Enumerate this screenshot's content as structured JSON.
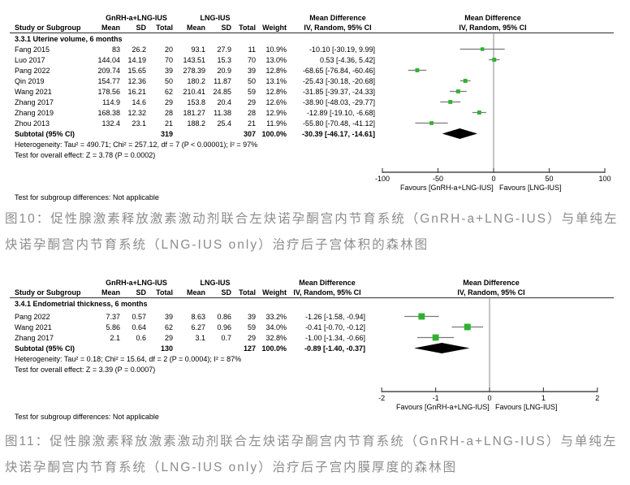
{
  "page": {
    "background": "#ffffff"
  },
  "colors": {
    "marker_green": "#2eb22e",
    "ci_line_gray": "#7a7a7a",
    "axis_gray": "#4a4a4a",
    "diamond_black": "#000000",
    "caption_gray": "#8c8c8c"
  },
  "captions": [
    {
      "lines": [
        "图10：促性腺激素释放激素激动剂联合左炔诺孕酮宫内节育系统（GnRH-a+LNG-IUS）与单纯左",
        "炔诺孕酮宫内节育系统（LNG-IUS only）治疗后子宫体积的森林图"
      ]
    },
    {
      "lines": [
        "图11：促性腺激素释放激素激动剂联合左炔诺孕酮宫内节育系统（GnRH-a+LNG-IUS）与单纯左",
        "炔诺孕酮宫内节育系统（LNG-IUS only）治疗后子宫内膜厚度的森林图"
      ]
    }
  ],
  "chart_data": [
    {
      "type": "scatter",
      "chart_kind": "forest-plot",
      "title": "Mean Difference",
      "effect_model": "IV, Random, 95% CI",
      "group1_label": "GnRH-a+LNG-IUS",
      "group2_label": "LNG-IUS",
      "column_headers": {
        "study": "Study or Subgroup",
        "mean": "Mean",
        "sd": "SD",
        "total": "Total",
        "weight": "Weight"
      },
      "section_label": "3.3.1 Uterine volume, 6 months",
      "rows": [
        {
          "study": "Fang 2015",
          "mean1": "83",
          "sd1": "26.2",
          "total1": "20",
          "mean2": "93.1",
          "sd2": "27.9",
          "total2": "11",
          "weight": "10.9%",
          "effect_text": "-10.10 [-30.19, 9.99]",
          "est": -10.1,
          "lo": -30.19,
          "hi": 9.99
        },
        {
          "study": "Luo 2017",
          "mean1": "144.04",
          "sd1": "14.19",
          "total1": "70",
          "mean2": "143.51",
          "sd2": "15.3",
          "total2": "70",
          "weight": "13.0%",
          "effect_text": "0.53 [-4.36, 5.42]",
          "est": 0.53,
          "lo": -4.36,
          "hi": 5.42
        },
        {
          "study": "Pang 2022",
          "mean1": "209.74",
          "sd1": "15.65",
          "total1": "39",
          "mean2": "278.39",
          "sd2": "20.9",
          "total2": "39",
          "weight": "12.8%",
          "effect_text": "-68.65 [-76.84, -60.46]",
          "est": -68.65,
          "lo": -76.84,
          "hi": -60.46
        },
        {
          "study": "Qin 2019",
          "mean1": "154.77",
          "sd1": "12.36",
          "total1": "50",
          "mean2": "180.2",
          "sd2": "11.87",
          "total2": "50",
          "weight": "13.1%",
          "effect_text": "-25.43 [-30.18, -20.68]",
          "est": -25.43,
          "lo": -30.18,
          "hi": -20.68
        },
        {
          "study": "Wang 2021",
          "mean1": "178.56",
          "sd1": "16.21",
          "total1": "62",
          "mean2": "210.41",
          "sd2": "24.85",
          "total2": "59",
          "weight": "12.8%",
          "effect_text": "-31.85 [-39.37, -24.33]",
          "est": -31.85,
          "lo": -39.37,
          "hi": -24.33
        },
        {
          "study": "Zhang 2017",
          "mean1": "114.9",
          "sd1": "14.6",
          "total1": "29",
          "mean2": "153.8",
          "sd2": "20.4",
          "total2": "29",
          "weight": "12.6%",
          "effect_text": "-38.90 [-48.03, -29.77]",
          "est": -38.9,
          "lo": -48.03,
          "hi": -29.77
        },
        {
          "study": "Zhang 2019",
          "mean1": "168.38",
          "sd1": "12.32",
          "total1": "28",
          "mean2": "181.27",
          "sd2": "11.38",
          "total2": "28",
          "weight": "12.9%",
          "effect_text": "-12.89 [-19.10, -6.68]",
          "est": -12.89,
          "lo": -19.1,
          "hi": -6.68
        },
        {
          "study": "Zhou 2013",
          "mean1": "132.4",
          "sd1": "23.1",
          "total1": "21",
          "mean2": "188.2",
          "sd2": "25.4",
          "total2": "21",
          "weight": "11.9%",
          "effect_text": "-55.80 [-70.48, -41.12]",
          "est": -55.8,
          "lo": -70.48,
          "hi": -41.12
        }
      ],
      "subtotal": {
        "label": "Subtotal (95% CI)",
        "total1": "319",
        "total2": "307",
        "weight": "100.0%",
        "effect_text": "-30.39 [-46.17, -14.61]",
        "est": -30.39,
        "lo": -46.17,
        "hi": -14.61
      },
      "heterogeneity": "Heterogeneity: Tau² = 490.71; Chi² = 257.12, df = 7 (P < 0.00001); I² = 97%",
      "overall_effect": "Test for overall effect: Z = 3.78 (P = 0.0002)",
      "subgroup_diff": "Test for subgroup differences: Not applicable",
      "axis": {
        "min": -100,
        "max": 100,
        "tick_values": [
          -100,
          -50,
          0,
          50,
          100
        ],
        "ticks": [
          "-100",
          "-50",
          "0",
          "50",
          "100"
        ]
      },
      "xlim": [
        -100,
        100
      ],
      "favours_left": "Favours [GnRH-a+LNG-IUS]",
      "favours_right": "Favours [LNG-IUS]"
    },
    {
      "type": "scatter",
      "chart_kind": "forest-plot",
      "title": "Mean Difference",
      "effect_model": "IV, Random, 95% CI",
      "group1_label": "GnRH-a+LNG-IUS",
      "group2_label": "LNG-IUS",
      "column_headers": {
        "study": "Study or Subgroup",
        "mean": "Mean",
        "sd": "SD",
        "total": "Total",
        "weight": "Weight"
      },
      "section_label": "3.4.1 Endometrial thickness, 6 months",
      "rows": [
        {
          "study": "Pang 2022",
          "mean1": "7.37",
          "sd1": "0.57",
          "total1": "39",
          "mean2": "8.63",
          "sd2": "0.86",
          "total2": "39",
          "weight": "33.2%",
          "effect_text": "-1.26 [-1.58, -0.94]",
          "est": -1.26,
          "lo": -1.58,
          "hi": -0.94
        },
        {
          "study": "Wang 2021",
          "mean1": "5.86",
          "sd1": "0.64",
          "total1": "62",
          "mean2": "6.27",
          "sd2": "0.96",
          "total2": "59",
          "weight": "34.0%",
          "effect_text": "-0.41 [-0.70, -0.12]",
          "est": -0.41,
          "lo": -0.7,
          "hi": -0.12
        },
        {
          "study": "Zhang 2017",
          "mean1": "2.1",
          "sd1": "0.6",
          "total1": "29",
          "mean2": "3.1",
          "sd2": "0.7",
          "total2": "29",
          "weight": "32.8%",
          "effect_text": "-1.00 [-1.34, -0.66]",
          "est": -1.0,
          "lo": -1.34,
          "hi": -0.66
        }
      ],
      "subtotal": {
        "label": "Subtotal (95% CI)",
        "total1": "130",
        "total2": "127",
        "weight": "100.0%",
        "effect_text": "-0.89 [-1.40, -0.37]",
        "est": -0.89,
        "lo": -1.4,
        "hi": -0.37
      },
      "heterogeneity": "Heterogeneity: Tau² = 0.18; Chi² = 15.64, df = 2 (P = 0.0004); I² = 87%",
      "overall_effect": "Test for overall effect: Z = 3.39 (P = 0.0007)",
      "subgroup_diff": "Test for subgroup differences: Not applicable",
      "axis": {
        "min": -2,
        "max": 2,
        "tick_values": [
          -2,
          -1,
          0,
          1,
          2
        ],
        "ticks": [
          "-2",
          "-1",
          "0",
          "1",
          "2"
        ]
      },
      "xlim": [
        -2,
        2
      ],
      "favours_left": "Favours [GnRH-a+LNG-IUS]",
      "favours_right": "Favours [LNG-IUS]"
    }
  ]
}
